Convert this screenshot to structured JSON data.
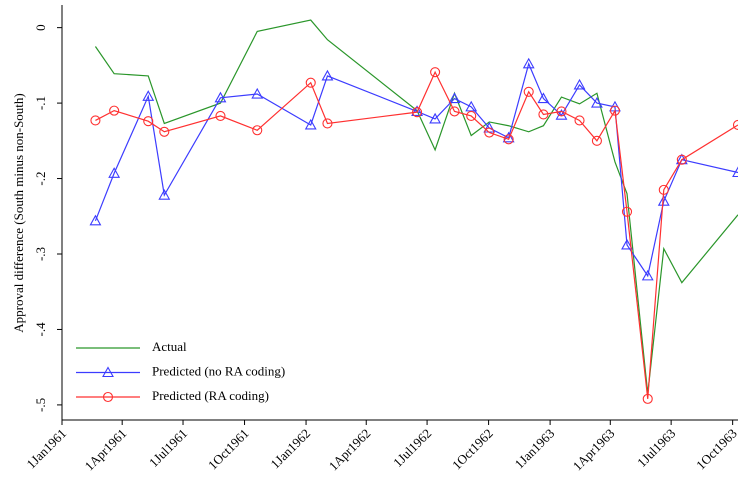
{
  "chart_data": {
    "type": "line",
    "y_label": "Approval difference (South minus non-South)",
    "x": [
      "1961-02-20",
      "1961-03-20",
      "1961-05-10",
      "1961-06-03",
      "1961-08-26",
      "1961-10-20",
      "1962-01-08",
      "1962-02-02",
      "1962-06-16",
      "1962-07-13",
      "1962-08-11",
      "1962-09-05",
      "1962-10-02",
      "1962-10-31",
      "1962-11-30",
      "1962-12-22",
      "1963-01-18",
      "1963-02-14",
      "1963-03-12",
      "1963-04-08",
      "1963-04-26",
      "1963-05-27",
      "1963-06-20",
      "1963-07-17",
      "1963-10-09"
    ],
    "series": [
      {
        "name": "Actual",
        "color": "#2a962a",
        "marker": "none",
        "values": [
          -0.025,
          -0.061,
          -0.064,
          -0.127,
          -0.1,
          -0.005,
          0.01,
          -0.016,
          -0.11,
          -0.162,
          -0.087,
          -0.143,
          -0.125,
          -0.13,
          -0.138,
          -0.13,
          -0.092,
          -0.101,
          -0.087,
          -0.178,
          -0.22,
          -0.485,
          -0.293,
          -0.338,
          -0.248
        ]
      },
      {
        "name": "Predicted (no RA coding)",
        "color": "#3c3cff",
        "marker": "triangle",
        "values": [
          -0.256,
          -0.193,
          -0.091,
          -0.222,
          -0.093,
          -0.088,
          -0.129,
          -0.064,
          -0.111,
          -0.121,
          -0.094,
          -0.105,
          -0.133,
          -0.146,
          -0.048,
          -0.094,
          -0.116,
          -0.076,
          -0.1,
          -0.105,
          -0.288,
          -0.329,
          -0.23,
          -0.175,
          -0.192
        ]
      },
      {
        "name": "Predicted (RA coding)",
        "color": "#ff3030",
        "marker": "circle",
        "values": [
          -0.123,
          -0.11,
          -0.124,
          -0.138,
          -0.117,
          -0.136,
          -0.073,
          -0.127,
          -0.112,
          -0.059,
          -0.111,
          -0.117,
          -0.139,
          -0.148,
          -0.085,
          -0.115,
          -0.111,
          -0.123,
          -0.15,
          -0.11,
          -0.244,
          -0.492,
          -0.215,
          -0.175,
          -0.129
        ]
      }
    ],
    "xlim": [
      "1961-01-01",
      "1963-10-09"
    ],
    "xticks": [
      {
        "value": "1961-01-01",
        "label": "1Jan1961"
      },
      {
        "value": "1961-04-01",
        "label": "1Apr1961"
      },
      {
        "value": "1961-07-01",
        "label": "1Jul1961"
      },
      {
        "value": "1961-10-01",
        "label": "1Oct1961"
      },
      {
        "value": "1962-01-01",
        "label": "1Jan1962"
      },
      {
        "value": "1962-04-01",
        "label": "1Apr1962"
      },
      {
        "value": "1962-07-01",
        "label": "1Jul1962"
      },
      {
        "value": "1962-10-01",
        "label": "1Oct1962"
      },
      {
        "value": "1963-01-01",
        "label": "1Jan1963"
      },
      {
        "value": "1963-04-01",
        "label": "1Apr1963"
      },
      {
        "value": "1963-07-01",
        "label": "1Jul1963"
      },
      {
        "value": "1963-10-01",
        "label": "1Oct1963"
      }
    ],
    "ylim": [
      -0.52,
      0.03
    ],
    "yticks": [
      0,
      {
        "value": -0.1,
        "label": "-.1"
      },
      {
        "value": -0.2,
        "label": "-.2"
      },
      {
        "value": -0.3,
        "label": "-.3"
      },
      {
        "value": -0.4,
        "label": "-.4"
      },
      {
        "value": -0.5,
        "label": "-.5"
      }
    ],
    "legend": "lower left",
    "grid": false
  }
}
